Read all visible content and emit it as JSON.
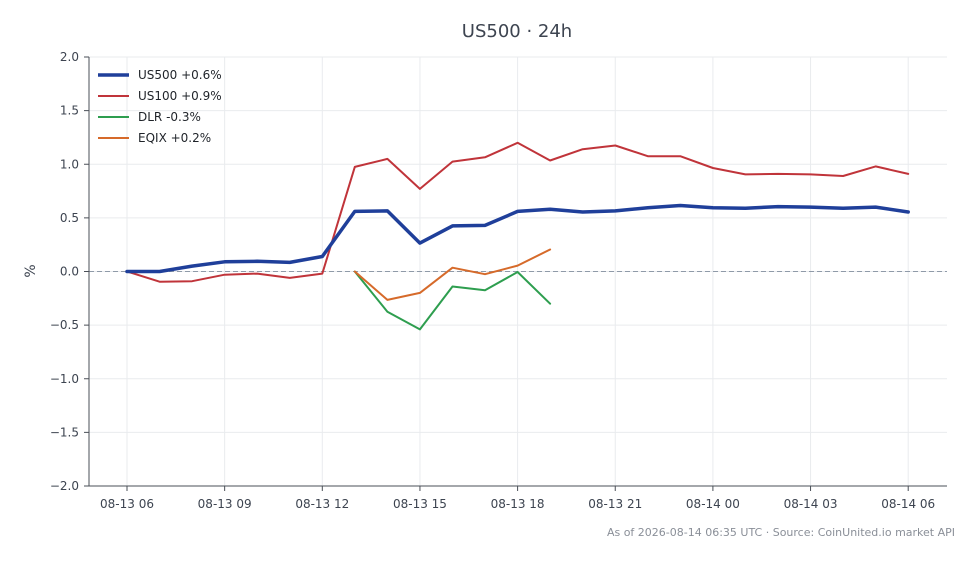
{
  "chart_data": {
    "type": "line",
    "title": "US500 · 24h",
    "ylabel": "%",
    "xlabel": "",
    "ylim": [
      -2.0,
      2.0
    ],
    "yticks": [
      -2.0,
      -1.5,
      -1.0,
      -0.5,
      0.0,
      0.5,
      1.0,
      1.5,
      2.0
    ],
    "ytick_labels": [
      "−2.0",
      "−1.5",
      "−1.0",
      "−0.5",
      "0.0",
      "0.5",
      "1.0",
      "1.5",
      "2.0"
    ],
    "x": [
      "08-13 06",
      "08-13 07",
      "08-13 08",
      "08-13 09",
      "08-13 10",
      "08-13 11",
      "08-13 12",
      "08-13 13",
      "08-13 14",
      "08-13 15",
      "08-13 16",
      "08-13 17",
      "08-13 18",
      "08-13 19",
      "08-13 20",
      "08-13 21",
      "08-13 22",
      "08-13 23",
      "08-14 00",
      "08-14 01",
      "08-14 02",
      "08-14 03",
      "08-14 04",
      "08-14 05",
      "08-14 06"
    ],
    "xticks": [
      "08-13 06",
      "08-13 09",
      "08-13 12",
      "08-13 15",
      "08-13 18",
      "08-13 21",
      "08-14 00",
      "08-14 03",
      "08-14 06"
    ],
    "grid": true,
    "legend_position": "top-left",
    "reference_line": 0.0,
    "series": [
      {
        "name": "US500 +0.6%",
        "color": "#1f3f9a",
        "bold": true,
        "values": [
          0.0,
          0.0,
          0.05,
          0.09,
          0.095,
          0.085,
          0.14,
          0.56,
          0.565,
          0.265,
          0.425,
          0.43,
          0.56,
          0.58,
          0.555,
          0.565,
          0.595,
          0.615,
          0.595,
          0.59,
          0.605,
          0.6,
          0.59,
          0.6,
          0.555
        ]
      },
      {
        "name": "US100 +0.9%",
        "color": "#c0343a",
        "bold": false,
        "values": [
          0.0,
          -0.095,
          -0.09,
          -0.03,
          -0.02,
          -0.06,
          -0.02,
          0.975,
          1.05,
          0.77,
          1.025,
          1.065,
          1.2,
          1.035,
          1.14,
          1.175,
          1.075,
          1.075,
          0.965,
          0.905,
          0.91,
          0.905,
          0.89,
          0.98,
          0.91
        ]
      },
      {
        "name": "DLR -0.3%",
        "color": "#2e9e4f",
        "bold": false,
        "values": [
          null,
          null,
          null,
          null,
          null,
          null,
          null,
          0.0,
          -0.375,
          -0.54,
          -0.14,
          -0.175,
          -0.005,
          -0.3,
          null,
          null,
          null,
          null,
          null,
          null,
          null,
          null,
          null,
          null,
          null
        ]
      },
      {
        "name": "EQIX +0.2%",
        "color": "#d66a2a",
        "bold": false,
        "values": [
          null,
          null,
          null,
          null,
          null,
          null,
          null,
          0.0,
          -0.265,
          -0.2,
          0.035,
          -0.025,
          0.055,
          0.205,
          null,
          null,
          null,
          null,
          null,
          null,
          null,
          null,
          null,
          null,
          null
        ]
      }
    ]
  },
  "footer": "As of 2026-08-14 06:35 UTC · Source: CoinUnited.io market API"
}
